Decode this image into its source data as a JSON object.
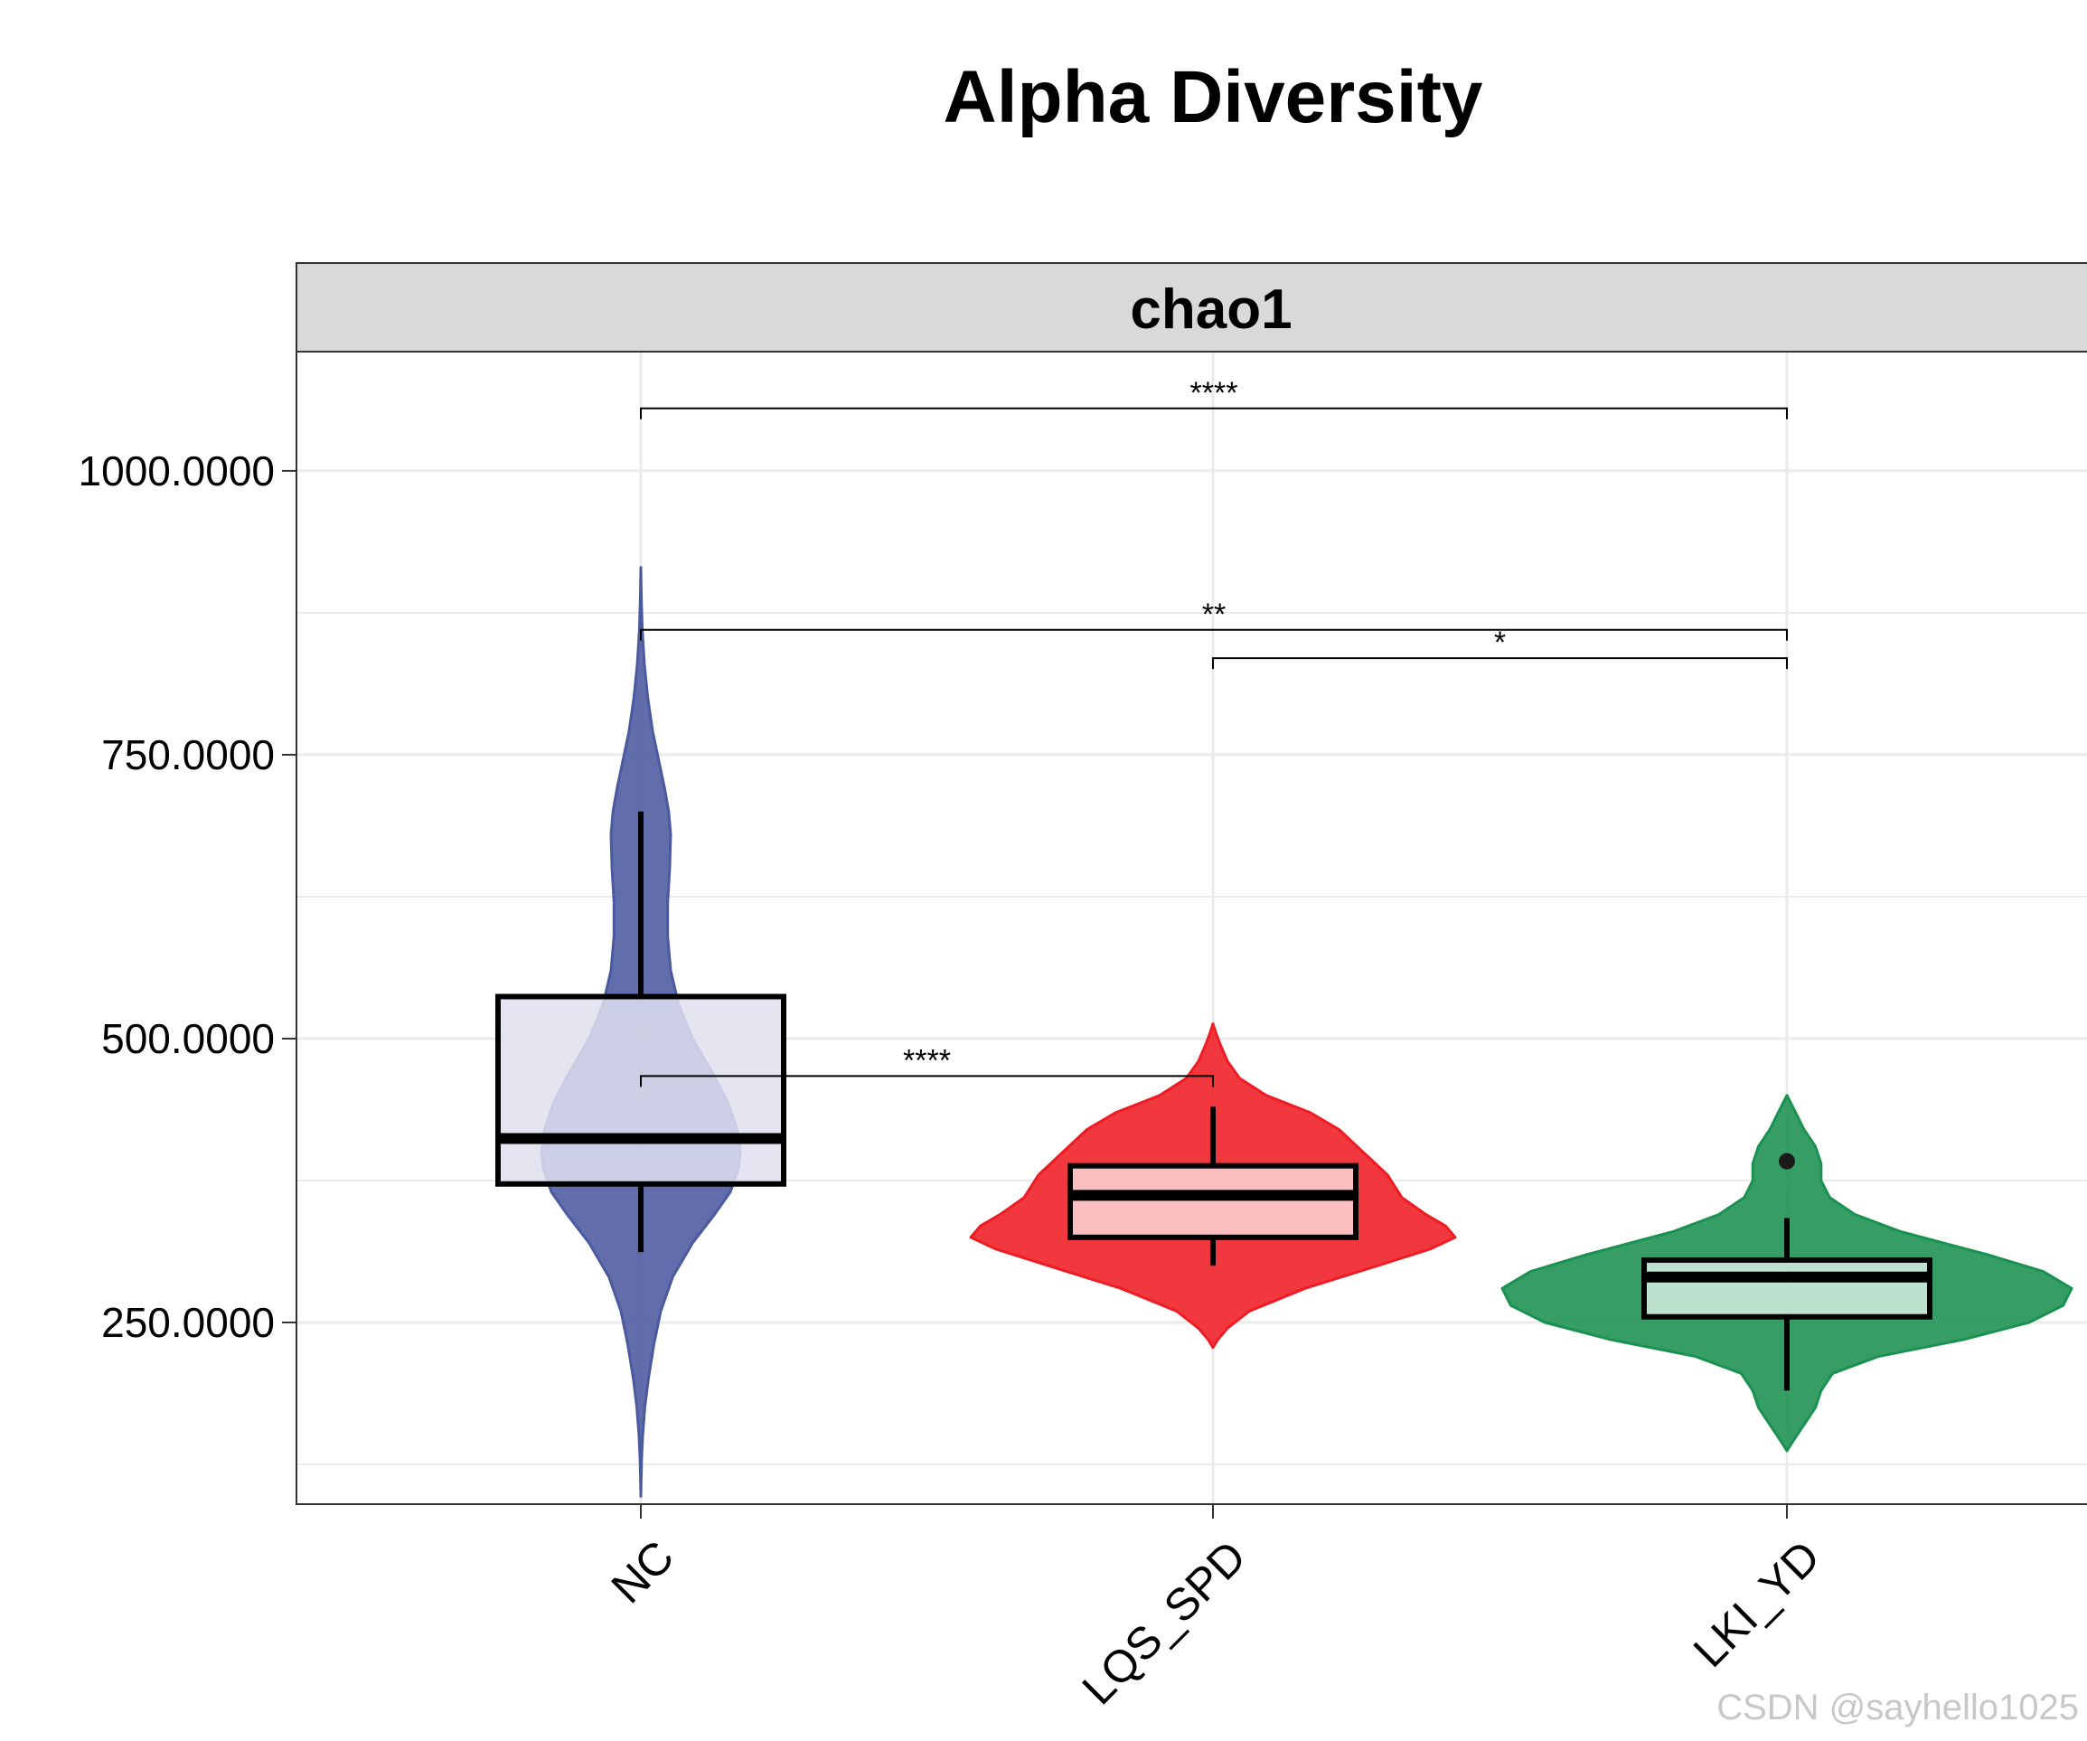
{
  "chart_data": {
    "type": "violin",
    "title": "Alpha Diversity",
    "facet_label": "chao1",
    "xlabel": "",
    "ylabel": "",
    "categories": [
      "NC",
      "LQS_SPD",
      "LKI_YD"
    ],
    "y_ticks": [
      250,
      500,
      750,
      1000
    ],
    "y_tick_labels": [
      "250.0000",
      "500.0000",
      "750.0000",
      "1000.0000"
    ],
    "ylim": [
      90,
      1105
    ],
    "grid": true,
    "groups": [
      {
        "category": "NC",
        "color": "#4b5a9f",
        "box_fill": "#dfe1ee",
        "box": {
          "whisker_low": 312,
          "q1": 372,
          "median": 412,
          "q3": 537,
          "whisker_high": 700
        },
        "outliers": [],
        "violin": [
          [
            97,
            0.0
          ],
          [
            110,
            0.003
          ],
          [
            130,
            0.008
          ],
          [
            150,
            0.018
          ],
          [
            175,
            0.04
          ],
          [
            200,
            0.075
          ],
          [
            230,
            0.13
          ],
          [
            260,
            0.2
          ],
          [
            290,
            0.32
          ],
          [
            320,
            0.52
          ],
          [
            345,
            0.74
          ],
          [
            365,
            0.9
          ],
          [
            385,
            0.98
          ],
          [
            400,
            1.0
          ],
          [
            420,
            0.97
          ],
          [
            445,
            0.87
          ],
          [
            470,
            0.72
          ],
          [
            500,
            0.52
          ],
          [
            530,
            0.38
          ],
          [
            560,
            0.3
          ],
          [
            590,
            0.27
          ],
          [
            620,
            0.27
          ],
          [
            650,
            0.29
          ],
          [
            680,
            0.3
          ],
          [
            700,
            0.28
          ],
          [
            720,
            0.24
          ],
          [
            745,
            0.18
          ],
          [
            770,
            0.12
          ],
          [
            800,
            0.07
          ],
          [
            830,
            0.035
          ],
          [
            860,
            0.015
          ],
          [
            890,
            0.005
          ],
          [
            915,
            0.0
          ]
        ]
      },
      {
        "category": "LQS_SPD",
        "color": "#ee1c23",
        "box_fill": "#fcd6d8",
        "box": {
          "whisker_low": 300,
          "q1": 325,
          "median": 362,
          "q3": 388,
          "whisker_high": 440
        },
        "outliers": [],
        "violin": [
          [
            228,
            0.0
          ],
          [
            235,
            0.02
          ],
          [
            245,
            0.06
          ],
          [
            260,
            0.15
          ],
          [
            280,
            0.38
          ],
          [
            300,
            0.68
          ],
          [
            315,
            0.9
          ],
          [
            325,
            1.0
          ],
          [
            335,
            0.96
          ],
          [
            345,
            0.88
          ],
          [
            360,
            0.78
          ],
          [
            380,
            0.72
          ],
          [
            400,
            0.62
          ],
          [
            420,
            0.52
          ],
          [
            435,
            0.4
          ],
          [
            450,
            0.22
          ],
          [
            465,
            0.11
          ],
          [
            480,
            0.06
          ],
          [
            495,
            0.03
          ],
          [
            505,
            0.012
          ],
          [
            513,
            0.0
          ]
        ]
      },
      {
        "category": "LKI_YD",
        "color": "#1a9150",
        "box_fill": "#d3ece0",
        "box": {
          "whisker_low": 190,
          "q1": 255,
          "median": 290,
          "q3": 305,
          "whisker_high": 342
        },
        "outliers": [
          392
        ],
        "violin": [
          [
            137,
            0.0
          ],
          [
            145,
            0.02
          ],
          [
            160,
            0.06
          ],
          [
            175,
            0.1
          ],
          [
            190,
            0.12
          ],
          [
            205,
            0.16
          ],
          [
            220,
            0.32
          ],
          [
            235,
            0.62
          ],
          [
            250,
            0.85
          ],
          [
            265,
            0.97
          ],
          [
            280,
            1.0
          ],
          [
            295,
            0.9
          ],
          [
            310,
            0.7
          ],
          [
            330,
            0.4
          ],
          [
            345,
            0.24
          ],
          [
            360,
            0.15
          ],
          [
            375,
            0.12
          ],
          [
            390,
            0.12
          ],
          [
            405,
            0.1
          ],
          [
            420,
            0.06
          ],
          [
            435,
            0.03
          ],
          [
            450,
            0.0
          ]
        ]
      }
    ],
    "comparisons": [
      {
        "from": "NC",
        "to": "LQS_SPD",
        "label": "****",
        "y": 467
      },
      {
        "from": "LQS_SPD",
        "to": "LKI_YD",
        "label": "*",
        "y": 835
      },
      {
        "from": "NC",
        "to": "LKI_YD",
        "label": "**",
        "y": 860
      },
      {
        "from": "NC",
        "to": "LKI_YD",
        "label": "****",
        "y": 1055
      }
    ]
  },
  "watermark": "CSDN @sayhello1025"
}
